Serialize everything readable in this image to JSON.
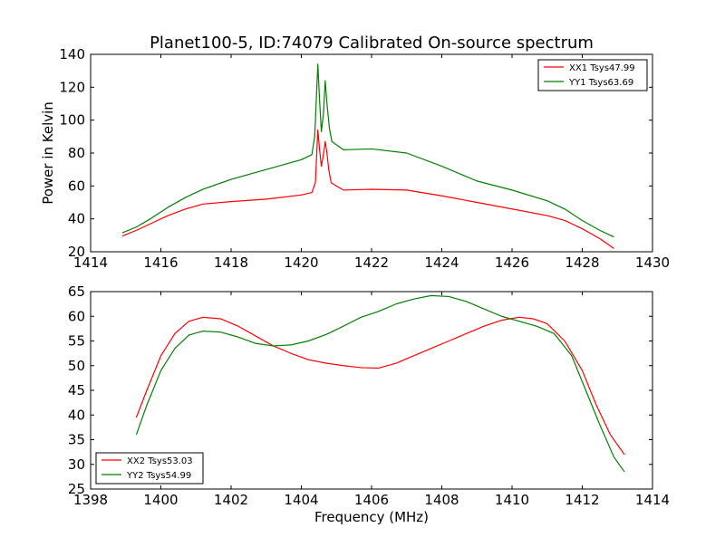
{
  "figure_title": "Planet100-5, ID:74079 Calibrated On-source spectrum",
  "chart_data": [
    {
      "type": "line",
      "ylabel": "Power in Kelvin",
      "xlabel": "",
      "xlim": [
        1414,
        1430
      ],
      "ylim": [
        20,
        140
      ],
      "xticks": [
        1414,
        1416,
        1418,
        1420,
        1422,
        1424,
        1426,
        1428,
        1430
      ],
      "yticks": [
        20,
        40,
        60,
        80,
        100,
        120,
        140
      ],
      "legend_position": "top-right",
      "series": [
        {
          "name": "XX1 Tsys47.99",
          "color": "#ff0000",
          "points": [
            [
              1414.9,
              29.5
            ],
            [
              1415.3,
              33
            ],
            [
              1415.7,
              37
            ],
            [
              1416.2,
              42
            ],
            [
              1416.7,
              46
            ],
            [
              1417.2,
              49
            ],
            [
              1418,
              50.5
            ],
            [
              1419,
              52
            ],
            [
              1420,
              54.5
            ],
            [
              1420.3,
              56
            ],
            [
              1420.4,
              62
            ],
            [
              1420.47,
              94
            ],
            [
              1420.52,
              82
            ],
            [
              1420.57,
              72
            ],
            [
              1420.62,
              78
            ],
            [
              1420.68,
              87
            ],
            [
              1420.73,
              80
            ],
            [
              1420.78,
              70
            ],
            [
              1420.85,
              62
            ],
            [
              1421,
              60
            ],
            [
              1421.2,
              57.5
            ],
            [
              1422,
              58
            ],
            [
              1423,
              57.5
            ],
            [
              1424,
              54
            ],
            [
              1425,
              50
            ],
            [
              1426,
              46
            ],
            [
              1427,
              42
            ],
            [
              1427.5,
              39
            ],
            [
              1428,
              34
            ],
            [
              1428.5,
              28
            ],
            [
              1428.9,
              22
            ]
          ]
        },
        {
          "name": "YY1 Tsys63.69",
          "color": "#008000",
          "points": [
            [
              1414.9,
              31.5
            ],
            [
              1415.3,
              35
            ],
            [
              1415.7,
              40
            ],
            [
              1416.2,
              47
            ],
            [
              1416.7,
              53
            ],
            [
              1417.2,
              58
            ],
            [
              1418,
              64
            ],
            [
              1419,
              70
            ],
            [
              1420,
              76
            ],
            [
              1420.3,
              79
            ],
            [
              1420.38,
              90
            ],
            [
              1420.47,
              134
            ],
            [
              1420.52,
              112
            ],
            [
              1420.57,
              93
            ],
            [
              1420.63,
              104
            ],
            [
              1420.68,
              124
            ],
            [
              1420.73,
              110
            ],
            [
              1420.8,
              95
            ],
            [
              1420.87,
              87
            ],
            [
              1421,
              85
            ],
            [
              1421.2,
              82
            ],
            [
              1422,
              82.5
            ],
            [
              1423,
              80
            ],
            [
              1424,
              72
            ],
            [
              1425,
              63
            ],
            [
              1426,
              57.5
            ],
            [
              1427,
              51
            ],
            [
              1427.5,
              46
            ],
            [
              1428,
              39
            ],
            [
              1428.5,
              33
            ],
            [
              1428.9,
              29
            ]
          ]
        }
      ]
    },
    {
      "type": "line",
      "ylabel": "",
      "xlabel": "Frequency (MHz)",
      "xlim": [
        1398,
        1414
      ],
      "ylim": [
        25,
        65
      ],
      "xticks": [
        1398,
        1400,
        1402,
        1404,
        1406,
        1408,
        1410,
        1412,
        1414
      ],
      "yticks": [
        25,
        30,
        35,
        40,
        45,
        50,
        55,
        60,
        65
      ],
      "legend_position": "bottom-left",
      "series": [
        {
          "name": "XX2 Tsys53.03",
          "color": "#ff0000",
          "points": [
            [
              1399.3,
              39.5
            ],
            [
              1399.6,
              45
            ],
            [
              1400,
              52
            ],
            [
              1400.4,
              56.5
            ],
            [
              1400.8,
              59
            ],
            [
              1401.2,
              59.8
            ],
            [
              1401.7,
              59.5
            ],
            [
              1402.2,
              58
            ],
            [
              1402.7,
              56
            ],
            [
              1403.2,
              54
            ],
            [
              1403.7,
              52.5
            ],
            [
              1404.2,
              51.2
            ],
            [
              1404.7,
              50.5
            ],
            [
              1405.2,
              50
            ],
            [
              1405.7,
              49.6
            ],
            [
              1406.2,
              49.5
            ],
            [
              1406.7,
              50.5
            ],
            [
              1407.2,
              52
            ],
            [
              1407.7,
              53.5
            ],
            [
              1408.2,
              55
            ],
            [
              1408.7,
              56.5
            ],
            [
              1409.2,
              58
            ],
            [
              1409.7,
              59.2
            ],
            [
              1410.2,
              59.8
            ],
            [
              1410.6,
              59.5
            ],
            [
              1411,
              58.5
            ],
            [
              1411.5,
              55
            ],
            [
              1412,
              49
            ],
            [
              1412.4,
              42
            ],
            [
              1412.8,
              36
            ],
            [
              1413.2,
              32
            ]
          ]
        },
        {
          "name": "YY2 Tsys54.99",
          "color": "#008000",
          "points": [
            [
              1399.3,
              36
            ],
            [
              1399.6,
              42
            ],
            [
              1400,
              49
            ],
            [
              1400.4,
              53.5
            ],
            [
              1400.8,
              56.2
            ],
            [
              1401.2,
              57
            ],
            [
              1401.7,
              56.8
            ],
            [
              1402.2,
              55.8
            ],
            [
              1402.7,
              54.5
            ],
            [
              1403.2,
              54
            ],
            [
              1403.7,
              54.2
            ],
            [
              1404.2,
              55
            ],
            [
              1404.7,
              56.3
            ],
            [
              1405.2,
              58
            ],
            [
              1405.7,
              59.8
            ],
            [
              1406.2,
              61
            ],
            [
              1406.7,
              62.5
            ],
            [
              1407.2,
              63.5
            ],
            [
              1407.7,
              64.2
            ],
            [
              1408.2,
              64
            ],
            [
              1408.7,
              63
            ],
            [
              1409.2,
              61.5
            ],
            [
              1409.7,
              60
            ],
            [
              1410.2,
              59
            ],
            [
              1410.7,
              58
            ],
            [
              1411.2,
              56.5
            ],
            [
              1411.7,
              52
            ],
            [
              1412.1,
              45
            ],
            [
              1412.5,
              38
            ],
            [
              1412.9,
              31.5
            ],
            [
              1413.2,
              28.5
            ]
          ]
        }
      ]
    }
  ]
}
